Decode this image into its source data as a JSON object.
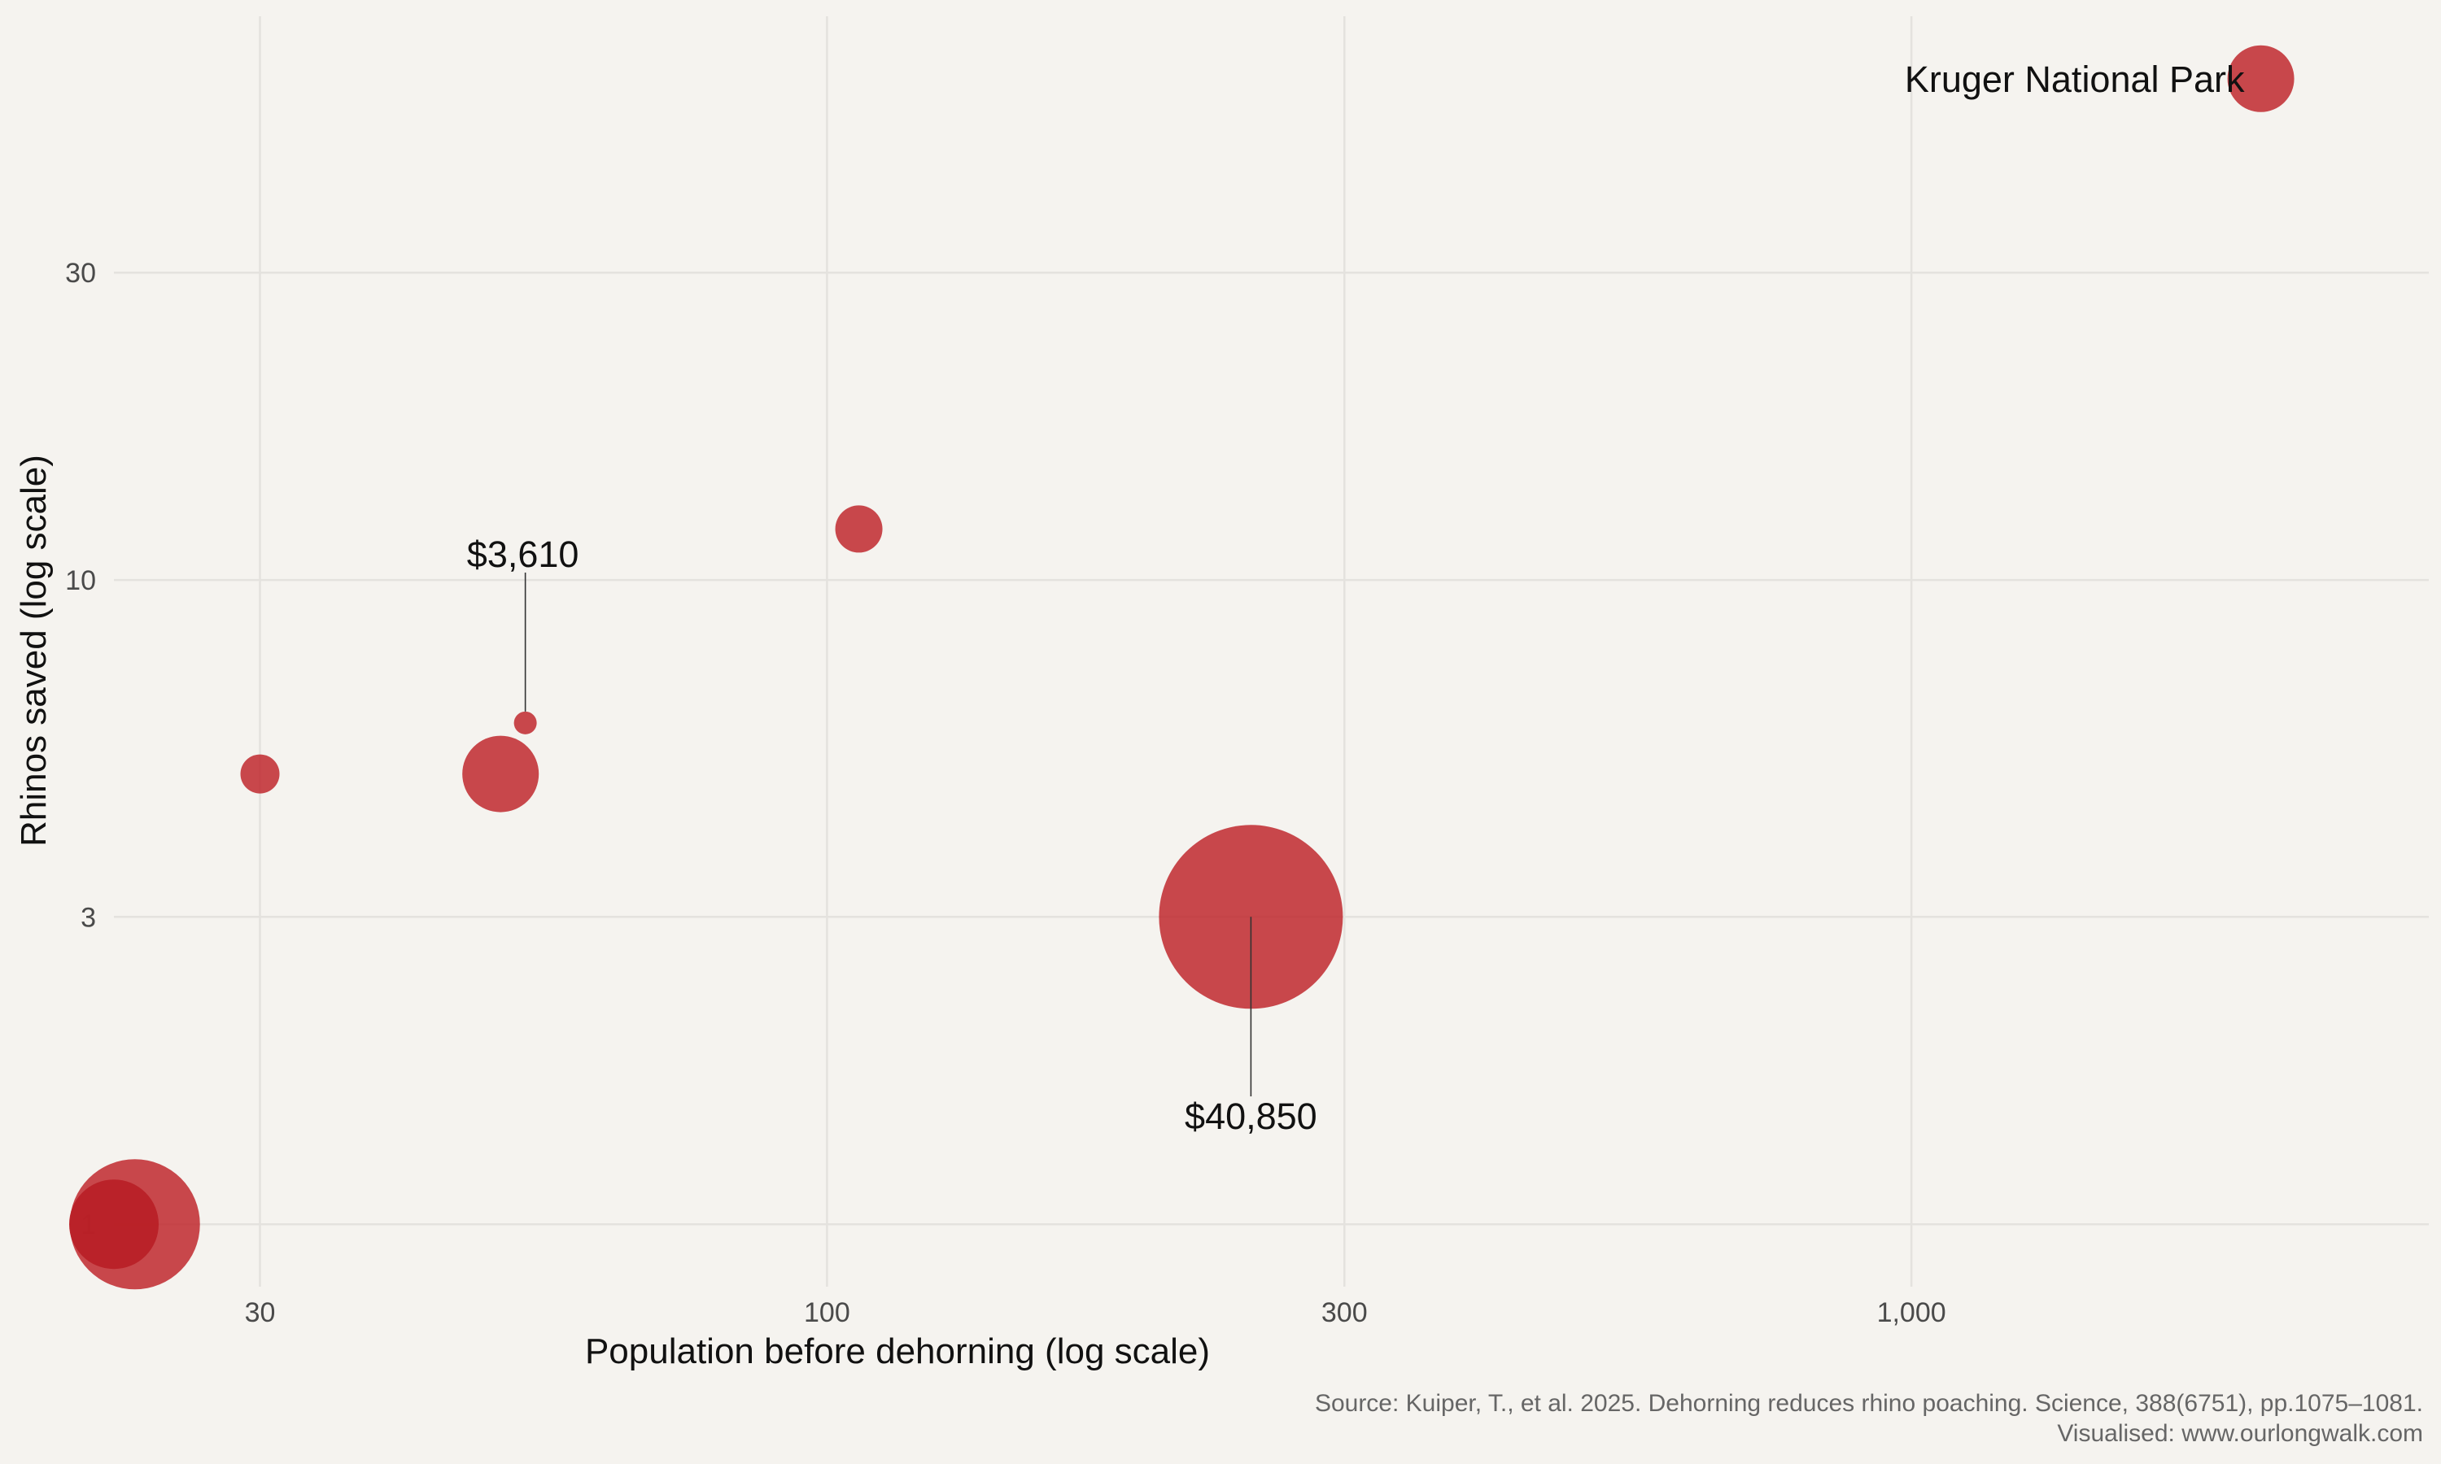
{
  "chart_data": {
    "type": "scatter",
    "title": "",
    "xlabel": "Population before dehorning (log scale)",
    "ylabel": "Rhinos saved (log scale)",
    "x_scale": "log",
    "y_scale": "log",
    "xlim": [
      22,
      3000
    ],
    "ylim": [
      0.8,
      75
    ],
    "x_ticks": [
      {
        "value": 30,
        "label": "30"
      },
      {
        "value": 100,
        "label": "100"
      },
      {
        "value": 300,
        "label": "300"
      },
      {
        "value": 1000,
        "label": "1,000"
      }
    ],
    "y_ticks": [
      {
        "value": 1,
        "label": "1"
      },
      {
        "value": 3,
        "label": "3"
      },
      {
        "value": 10,
        "label": "10"
      },
      {
        "value": 30,
        "label": "30"
      }
    ],
    "grid": true,
    "point_color": "#c0282e",
    "size_variable": "cost per rhino saved (US$)",
    "points": [
      {
        "x": 2100,
        "y": 60,
        "size": 7500,
        "label": "Kruger National Park"
      },
      {
        "x": 107,
        "y": 12,
        "size": 6500,
        "label": ""
      },
      {
        "x": 52.7,
        "y": 6.0,
        "size": 3610,
        "label": "$3,610"
      },
      {
        "x": 30,
        "y": 5,
        "size": 5800,
        "label": ""
      },
      {
        "x": 50,
        "y": 5,
        "size": 13500,
        "label": ""
      },
      {
        "x": 246,
        "y": 3,
        "size": 40850,
        "label": "$40,850"
      },
      {
        "x": 23,
        "y": 1,
        "size": 18500,
        "label": ""
      },
      {
        "x": 22,
        "y": 1,
        "size": 9500,
        "label": ""
      }
    ]
  },
  "source": {
    "line1": "Source: Kuiper, T., et al. 2025. Dehorning reduces rhino poaching. Science, 388(6751), pp.1075–1081.",
    "line2": "Visualised: www.ourlongwalk.com"
  }
}
